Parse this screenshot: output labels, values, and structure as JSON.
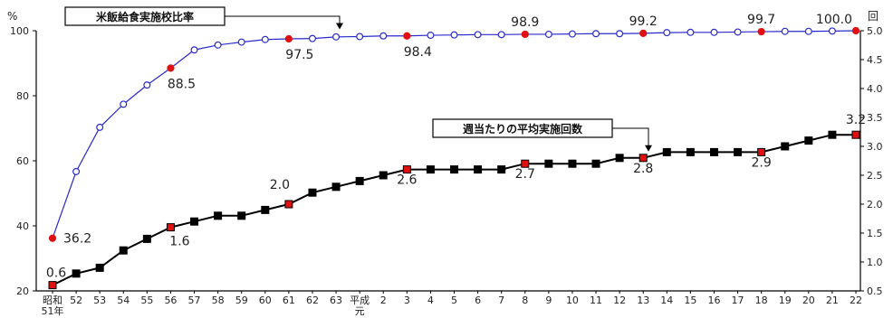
{
  "chart_data": {
    "type": "line",
    "title": "",
    "left_axis": {
      "unit": "%",
      "ylim": [
        20,
        100
      ],
      "ticks": [
        "20",
        "40",
        "60",
        "80",
        "100"
      ]
    },
    "right_axis": {
      "unit": "回",
      "ylim": [
        0.5,
        5.0
      ],
      "ticks": [
        "0.5",
        "1.0",
        "1.5",
        "2.0",
        "2.5",
        "3.0",
        "3.5",
        "4.0",
        "4.5",
        "5.0"
      ]
    },
    "categories": [
      "昭和51年",
      "52",
      "53",
      "54",
      "55",
      "56",
      "57",
      "58",
      "59",
      "60",
      "61",
      "62",
      "63",
      "平成元",
      "2",
      "3",
      "4",
      "5",
      "6",
      "7",
      "8",
      "9",
      "10",
      "11",
      "12",
      "13",
      "14",
      "15",
      "16",
      "17",
      "18",
      "19",
      "20",
      "21",
      "22"
    ],
    "category_display": [
      [
        "昭和",
        "51年"
      ],
      [
        "52"
      ],
      [
        "53"
      ],
      [
        "54"
      ],
      [
        "55"
      ],
      [
        "56"
      ],
      [
        "57"
      ],
      [
        "58"
      ],
      [
        "59"
      ],
      [
        "60"
      ],
      [
        "61"
      ],
      [
        "62"
      ],
      [
        "63"
      ],
      [
        "平成",
        "元"
      ],
      [
        "2"
      ],
      [
        "3"
      ],
      [
        "4"
      ],
      [
        "5"
      ],
      [
        "6"
      ],
      [
        "7"
      ],
      [
        "8"
      ],
      [
        "9"
      ],
      [
        "10"
      ],
      [
        "11"
      ],
      [
        "12"
      ],
      [
        "13"
      ],
      [
        "14"
      ],
      [
        "15"
      ],
      [
        "16"
      ],
      [
        "17"
      ],
      [
        "18"
      ],
      [
        "19"
      ],
      [
        "20"
      ],
      [
        "21"
      ],
      [
        "22"
      ]
    ],
    "series": [
      {
        "name": "米飯給食実施校比率",
        "axis": "left",
        "color": "#2a2acc",
        "marker": "open-circle",
        "values": [
          36.2,
          56.7,
          70.3,
          77.4,
          83.3,
          88.5,
          94.1,
          95.6,
          96.5,
          97.3,
          97.5,
          97.6,
          98.1,
          98.2,
          98.4,
          98.4,
          98.6,
          98.7,
          98.8,
          98.8,
          98.9,
          98.9,
          99.0,
          99.1,
          99.1,
          99.2,
          99.4,
          99.5,
          99.5,
          99.6,
          99.7,
          99.8,
          99.8,
          99.9,
          100.0
        ],
        "labels": [
          {
            "index": 0,
            "text": "36.2"
          },
          {
            "index": 5,
            "text": "88.5"
          },
          {
            "index": 10,
            "text": "97.5"
          },
          {
            "index": 15,
            "text": "98.4"
          },
          {
            "index": 20,
            "text": "98.9"
          },
          {
            "index": 25,
            "text": "99.2"
          },
          {
            "index": 30,
            "text": "99.7"
          },
          {
            "index": 34,
            "text": "100.0"
          }
        ],
        "highlight_indices": [
          0,
          5,
          10,
          15,
          20,
          25,
          30,
          34
        ]
      },
      {
        "name": "週当たりの平均実施回数",
        "axis": "right",
        "color": "#000000",
        "marker": "filled-square",
        "values": [
          0.6,
          0.8,
          0.9,
          1.2,
          1.4,
          1.6,
          1.7,
          1.8,
          1.8,
          1.9,
          2.0,
          2.2,
          2.3,
          2.4,
          2.5,
          2.6,
          2.6,
          2.6,
          2.6,
          2.6,
          2.7,
          2.7,
          2.7,
          2.7,
          2.8,
          2.8,
          2.9,
          2.9,
          2.9,
          2.9,
          2.9,
          3.0,
          3.1,
          3.2,
          3.2
        ],
        "labels": [
          {
            "index": 0,
            "text": "0.6"
          },
          {
            "index": 5,
            "text": "1.6"
          },
          {
            "index": 10,
            "text": "2.0"
          },
          {
            "index": 15,
            "text": "2.6"
          },
          {
            "index": 20,
            "text": "2.7"
          },
          {
            "index": 25,
            "text": "2.8"
          },
          {
            "index": 30,
            "text": "2.9"
          },
          {
            "index": 34,
            "text": "3.2"
          }
        ],
        "highlight_indices": [
          0,
          5,
          10,
          15,
          20,
          25,
          30,
          34
        ]
      }
    ],
    "callouts": [
      {
        "text": "米飯給食実施校比率",
        "series": 0,
        "target_index": 13
      },
      {
        "text": "週当たりの平均実施回数",
        "series": 1,
        "target_index": 25
      }
    ],
    "highlight_color": "#e01010",
    "grid": false,
    "legend": "callouts"
  }
}
